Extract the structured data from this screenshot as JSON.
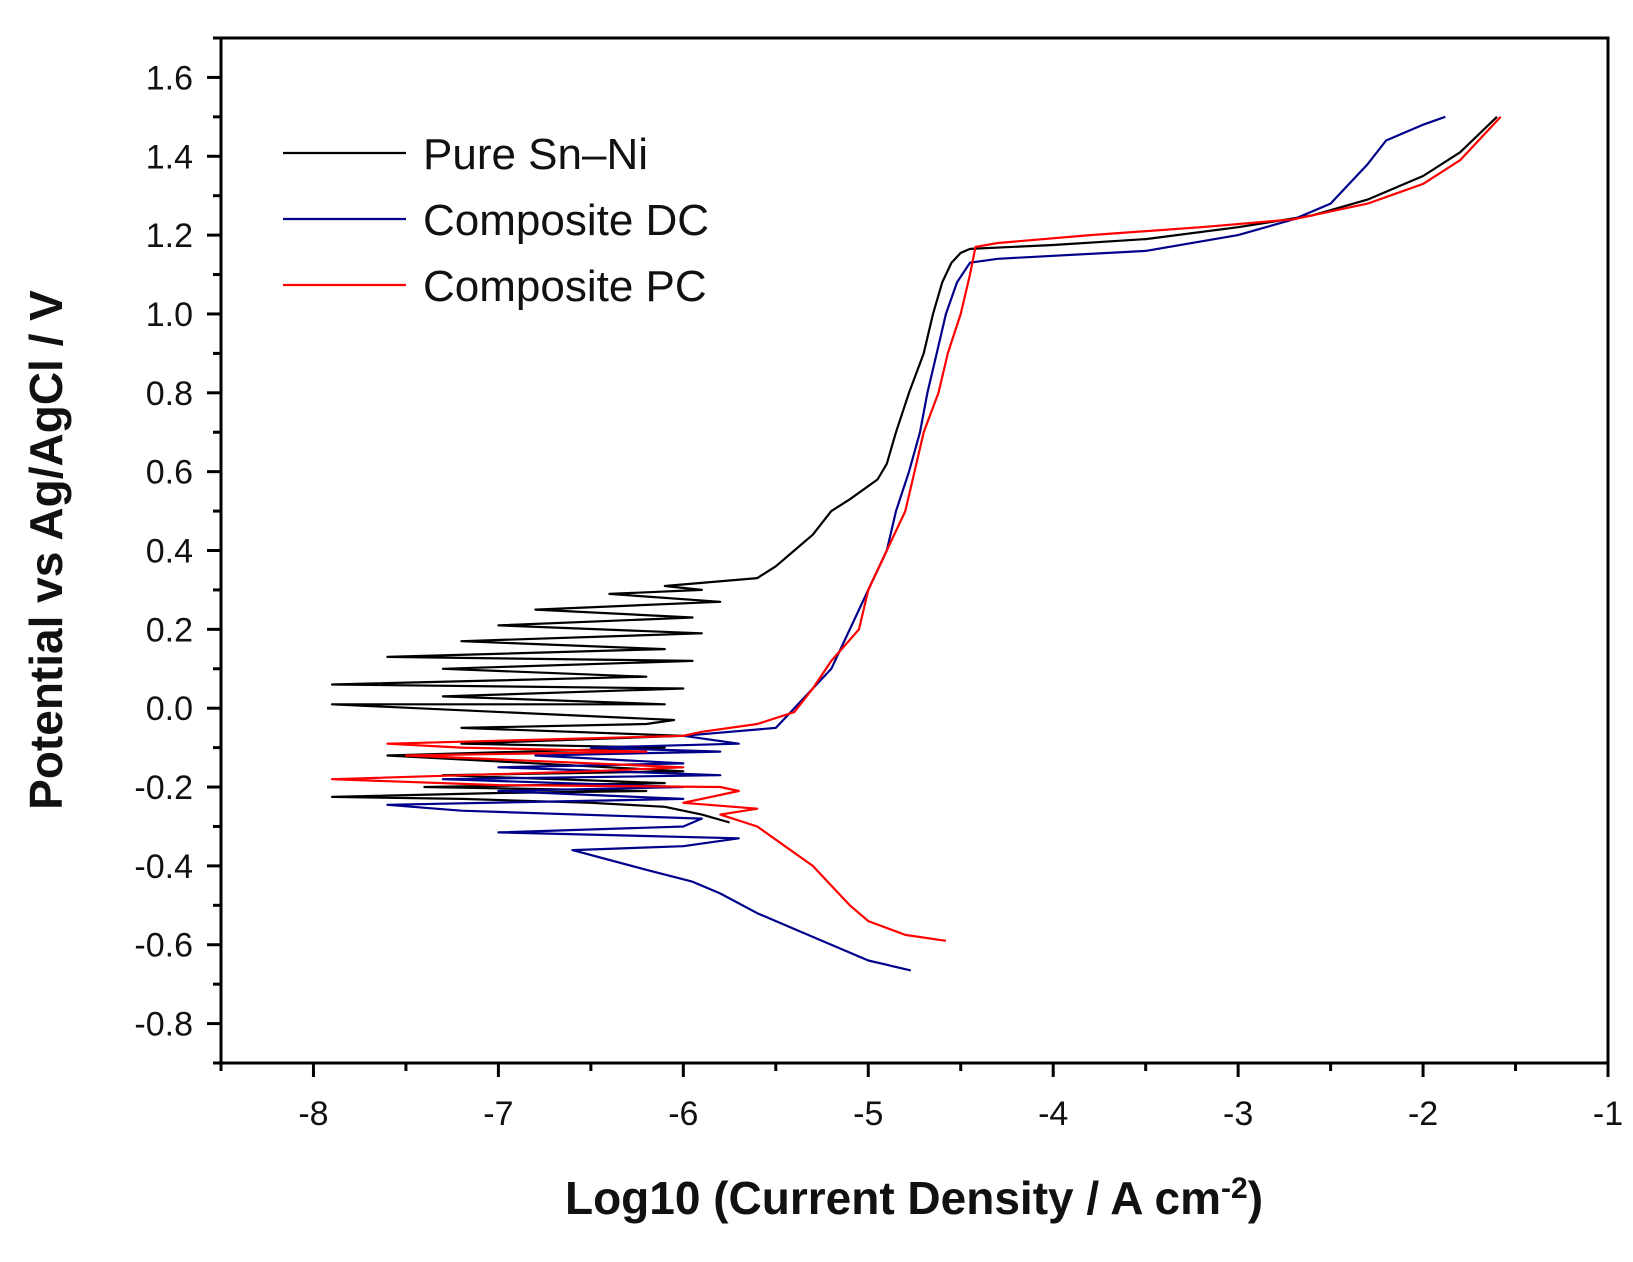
{
  "chart_data": {
    "type": "line",
    "xlabel": "Log10 (Current Density / A cm",
    "xlabel_sup": "-2",
    "xlabel_close": ")",
    "ylabel": "Potential vs Ag/AgCl / V",
    "xlim": [
      -8.5,
      -1
    ],
    "ylim": [
      -0.9,
      1.7
    ],
    "x_ticks": [
      -8,
      -7,
      -6,
      -5,
      -4,
      -3,
      -2,
      -1
    ],
    "x_tick_labels": [
      "-8",
      "-7",
      "-6",
      "-5",
      "-4",
      "-3",
      "-2",
      "-1"
    ],
    "y_ticks": [
      -0.8,
      -0.6,
      -0.4,
      -0.2,
      0.0,
      0.2,
      0.4,
      0.6,
      0.8,
      1.0,
      1.2,
      1.4,
      1.6
    ],
    "y_tick_labels": [
      "-0.8",
      "-0.6",
      "-0.4",
      "-0.2",
      "0.0",
      "0.2",
      "0.4",
      "0.6",
      "0.8",
      "1.0",
      "1.2",
      "1.4",
      "1.6"
    ],
    "grid": false,
    "legend_position": "top-left",
    "series": [
      {
        "name": "Pure Sn–Ni",
        "color": "#000000",
        "points": [
          [
            -5.75,
            -0.29
          ],
          [
            -5.9,
            -0.27
          ],
          [
            -6.1,
            -0.25
          ],
          [
            -6.5,
            -0.24
          ],
          [
            -7.2,
            -0.23
          ],
          [
            -7.9,
            -0.225
          ],
          [
            -7.0,
            -0.215
          ],
          [
            -6.2,
            -0.21
          ],
          [
            -7.4,
            -0.2
          ],
          [
            -6.1,
            -0.19
          ],
          [
            -7.3,
            -0.17
          ],
          [
            -6.0,
            -0.16
          ],
          [
            -7.6,
            -0.12
          ],
          [
            -6.1,
            -0.1
          ],
          [
            -7.2,
            -0.09
          ],
          [
            -6.0,
            -0.07
          ],
          [
            -7.2,
            -0.05
          ],
          [
            -6.2,
            -0.04
          ],
          [
            -6.05,
            -0.03
          ],
          [
            -7.9,
            0.01
          ],
          [
            -6.1,
            0.01
          ],
          [
            -7.3,
            0.03
          ],
          [
            -6.0,
            0.05
          ],
          [
            -7.9,
            0.06
          ],
          [
            -6.2,
            0.08
          ],
          [
            -7.3,
            0.1
          ],
          [
            -5.95,
            0.12
          ],
          [
            -7.6,
            0.13
          ],
          [
            -6.1,
            0.15
          ],
          [
            -7.2,
            0.17
          ],
          [
            -5.9,
            0.19
          ],
          [
            -7.0,
            0.21
          ],
          [
            -5.95,
            0.23
          ],
          [
            -6.8,
            0.25
          ],
          [
            -5.8,
            0.27
          ],
          [
            -6.4,
            0.29
          ],
          [
            -5.9,
            0.3
          ],
          [
            -6.1,
            0.31
          ],
          [
            -5.6,
            0.33
          ],
          [
            -5.5,
            0.36
          ],
          [
            -5.4,
            0.4
          ],
          [
            -5.3,
            0.44
          ],
          [
            -5.2,
            0.5
          ],
          [
            -5.1,
            0.53
          ],
          [
            -4.95,
            0.58
          ],
          [
            -4.9,
            0.62
          ],
          [
            -4.85,
            0.7
          ],
          [
            -4.78,
            0.8
          ],
          [
            -4.7,
            0.9
          ],
          [
            -4.65,
            1.0
          ],
          [
            -4.6,
            1.08
          ],
          [
            -4.55,
            1.13
          ],
          [
            -4.5,
            1.155
          ],
          [
            -4.45,
            1.165
          ],
          [
            -4.0,
            1.175
          ],
          [
            -3.5,
            1.19
          ],
          [
            -3.0,
            1.22
          ],
          [
            -2.6,
            1.25
          ],
          [
            -2.3,
            1.29
          ],
          [
            -2.0,
            1.35
          ],
          [
            -1.8,
            1.41
          ],
          [
            -1.6,
            1.5
          ]
        ]
      },
      {
        "name": "Composite DC",
        "color": "#00008b",
        "points": [
          [
            -4.77,
            -0.665
          ],
          [
            -5.0,
            -0.64
          ],
          [
            -5.2,
            -0.6
          ],
          [
            -5.4,
            -0.56
          ],
          [
            -5.6,
            -0.52
          ],
          [
            -5.8,
            -0.47
          ],
          [
            -5.95,
            -0.44
          ],
          [
            -6.2,
            -0.41
          ],
          [
            -6.6,
            -0.36
          ],
          [
            -6.0,
            -0.35
          ],
          [
            -5.7,
            -0.33
          ],
          [
            -7.0,
            -0.315
          ],
          [
            -6.0,
            -0.3
          ],
          [
            -5.9,
            -0.28
          ],
          [
            -7.2,
            -0.26
          ],
          [
            -7.6,
            -0.245
          ],
          [
            -6.0,
            -0.23
          ],
          [
            -7.0,
            -0.21
          ],
          [
            -6.0,
            -0.2
          ],
          [
            -7.3,
            -0.18
          ],
          [
            -5.8,
            -0.17
          ],
          [
            -7.0,
            -0.15
          ],
          [
            -6.0,
            -0.14
          ],
          [
            -6.8,
            -0.12
          ],
          [
            -5.8,
            -0.11
          ],
          [
            -6.5,
            -0.1
          ],
          [
            -5.7,
            -0.09
          ],
          [
            -6.0,
            -0.07
          ],
          [
            -5.5,
            -0.05
          ],
          [
            -5.4,
            0.0
          ],
          [
            -5.3,
            0.05
          ],
          [
            -5.2,
            0.1
          ],
          [
            -5.1,
            0.2
          ],
          [
            -5.0,
            0.3
          ],
          [
            -4.9,
            0.4
          ],
          [
            -4.85,
            0.5
          ],
          [
            -4.78,
            0.6
          ],
          [
            -4.72,
            0.7
          ],
          [
            -4.68,
            0.8
          ],
          [
            -4.63,
            0.9
          ],
          [
            -4.58,
            1.0
          ],
          [
            -4.52,
            1.08
          ],
          [
            -4.45,
            1.13
          ],
          [
            -4.3,
            1.14
          ],
          [
            -3.5,
            1.16
          ],
          [
            -3.0,
            1.2
          ],
          [
            -2.7,
            1.24
          ],
          [
            -2.5,
            1.28
          ],
          [
            -2.4,
            1.33
          ],
          [
            -2.3,
            1.38
          ],
          [
            -2.2,
            1.44
          ],
          [
            -2.0,
            1.48
          ],
          [
            -1.88,
            1.5
          ]
        ]
      },
      {
        "name": "Composite PC",
        "color": "#ff0000",
        "points": [
          [
            -4.58,
            -0.59
          ],
          [
            -4.8,
            -0.575
          ],
          [
            -5.0,
            -0.54
          ],
          [
            -5.1,
            -0.5
          ],
          [
            -5.2,
            -0.45
          ],
          [
            -5.3,
            -0.4
          ],
          [
            -5.45,
            -0.35
          ],
          [
            -5.6,
            -0.3
          ],
          [
            -5.8,
            -0.27
          ],
          [
            -5.6,
            -0.255
          ],
          [
            -6.0,
            -0.24
          ],
          [
            -5.7,
            -0.21
          ],
          [
            -5.8,
            -0.2
          ],
          [
            -7.0,
            -0.195
          ],
          [
            -7.9,
            -0.18
          ],
          [
            -6.5,
            -0.16
          ],
          [
            -6.0,
            -0.15
          ],
          [
            -7.0,
            -0.13
          ],
          [
            -7.5,
            -0.12
          ],
          [
            -6.2,
            -0.11
          ],
          [
            -7.2,
            -0.1
          ],
          [
            -7.6,
            -0.09
          ],
          [
            -6.0,
            -0.07
          ],
          [
            -5.9,
            -0.06
          ],
          [
            -5.6,
            -0.04
          ],
          [
            -5.4,
            -0.01
          ],
          [
            -5.3,
            0.05
          ],
          [
            -5.2,
            0.12
          ],
          [
            -5.05,
            0.2
          ],
          [
            -5.0,
            0.3
          ],
          [
            -4.9,
            0.4
          ],
          [
            -4.8,
            0.5
          ],
          [
            -4.75,
            0.6
          ],
          [
            -4.7,
            0.7
          ],
          [
            -4.62,
            0.8
          ],
          [
            -4.57,
            0.9
          ],
          [
            -4.5,
            1.0
          ],
          [
            -4.45,
            1.1
          ],
          [
            -4.42,
            1.17
          ],
          [
            -4.3,
            1.18
          ],
          [
            -3.8,
            1.2
          ],
          [
            -3.2,
            1.22
          ],
          [
            -2.7,
            1.24
          ],
          [
            -2.3,
            1.28
          ],
          [
            -2.0,
            1.33
          ],
          [
            -1.8,
            1.39
          ],
          [
            -1.58,
            1.5
          ]
        ]
      }
    ]
  }
}
